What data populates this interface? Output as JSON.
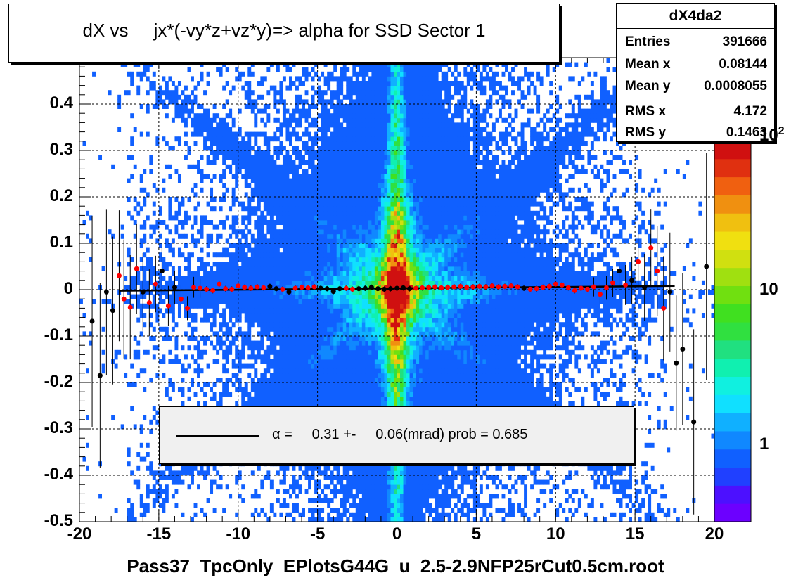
{
  "title": "dX vs     jx*(-vy*z+vz*y)=> alpha for SSD Sector 1",
  "stats": {
    "name": "dX4da2",
    "rows": [
      {
        "label": "Entries",
        "value": "391666"
      },
      {
        "label": "Mean x",
        "value": "0.08144"
      },
      {
        "label": "Mean y",
        "value": "0.0008055"
      },
      {
        "label": "RMS x",
        "value": "4.172"
      },
      {
        "label": "RMS y",
        "value": "0.1463"
      }
    ]
  },
  "fit": {
    "text": "α =     0.31 +-     0.06(mrad) prob = 0.685"
  },
  "xlabel": "Pass37_TpcOnly_EPlotsG44G_u_2.5-2.9NFP25rCut0.5cm.root",
  "colors": {
    "red_points": "#ff0000",
    "black_points": "#000000",
    "fit_line": "#000000",
    "palette": [
      "#6c00ff",
      "#4c10ff",
      "#2040ff",
      "#1060ff",
      "#1088ff",
      "#10b0ff",
      "#10e0ff",
      "#10f0e0",
      "#10f0b0",
      "#20e080",
      "#30e040",
      "#40e020",
      "#70e010",
      "#a0e010",
      "#d0e010",
      "#f0e010",
      "#f0c010",
      "#f09010",
      "#f06010",
      "#e03010",
      "#d01010"
    ]
  },
  "chart_data": {
    "type": "heatmap",
    "title": "dX vs     jx*(-vy*z+vz*y)=> alpha for SSD Sector 1",
    "xlabel": "Pass37_TpcOnly_EPlotsG44G_u_2.5-2.9NFP25rCut0.5cm.root",
    "ylabel": "",
    "xlim": [
      -20,
      20
    ],
    "ylim": [
      -0.5,
      0.5
    ],
    "x_ticks": [
      "-20",
      "-15",
      "-10",
      "-5",
      "0",
      "5",
      "10",
      "15",
      "20"
    ],
    "y_ticks": [
      "-0.5",
      "-0.4",
      "-0.3",
      "-0.2",
      "-0.1",
      "0",
      "0.1",
      "0.2",
      "0.3",
      "0.4"
    ],
    "z_scale": "log",
    "z_ticks": [
      "1",
      "10",
      "10^2"
    ],
    "grid": true,
    "fit": {
      "alpha_mrad": 0.31,
      "error_mrad": 0.06,
      "prob": 0.685
    },
    "profile_points": {
      "x": [
        -19.2,
        -18.7,
        -18.3,
        -17.9,
        -17.5,
        -17.2,
        -16.8,
        -16.4,
        -16.0,
        -15.6,
        -15.2,
        -14.8,
        -14.4,
        -14.0,
        -13.6,
        -13.2,
        -12.8,
        -12.4,
        -12.0,
        -11.6,
        -11.2,
        -10.8,
        -10.4,
        -10.0,
        -9.6,
        -9.2,
        -8.8,
        -8.4,
        -8.0,
        -7.6,
        -7.2,
        -6.8,
        -6.4,
        -6.0,
        -5.6,
        -5.2,
        -4.8,
        -4.4,
        -4.0,
        -3.6,
        -3.2,
        -2.8,
        -2.4,
        -2.0,
        -1.6,
        -1.2,
        -0.8,
        -0.4,
        0.0,
        0.4,
        0.8,
        1.2,
        1.6,
        2.0,
        2.4,
        2.8,
        3.2,
        3.6,
        4.0,
        4.4,
        4.8,
        5.2,
        5.6,
        6.0,
        6.4,
        6.8,
        7.2,
        7.6,
        8.0,
        8.4,
        8.8,
        9.2,
        9.6,
        10.0,
        10.4,
        10.8,
        11.2,
        11.6,
        12.0,
        12.4,
        12.8,
        13.2,
        13.6,
        14.0,
        14.4,
        14.8,
        15.2,
        15.6,
        16.0,
        16.4,
        16.8,
        17.2,
        17.6,
        18.0,
        18.7,
        19.5
      ],
      "y": [
        -0.068,
        -0.185,
        -0.005,
        -0.045,
        0.03,
        -0.02,
        -0.038,
        0.045,
        -0.005,
        -0.028,
        0.012,
        0.04,
        -0.035,
        0.005,
        -0.02,
        -0.04,
        0.005,
        0.003,
        0.001,
        -0.002,
        0.012,
        0.002,
        0.001,
        0.008,
        0.005,
        0.003,
        0.006,
        0.004,
        0.007,
        0.002,
        0.001,
        -0.005,
        0.003,
        0.005,
        0.004,
        0.006,
        0.003,
        0.002,
        -0.004,
        0.002,
        0.003,
        0.001,
        0.002,
        0.003,
        0.005,
        0.002,
        0.001,
        0.002,
        0.003,
        0.004,
        0.002,
        0.003,
        0.004,
        0.005,
        0.006,
        0.004,
        0.005,
        0.006,
        0.007,
        0.005,
        0.006,
        0.007,
        0.006,
        0.008,
        0.006,
        0.007,
        0.008,
        0.006,
        0.003,
        0.001,
        0.002,
        0.005,
        0.007,
        0.012,
        0.01,
        0.004,
        -0.002,
        0.003,
        0.001,
        0.006,
        -0.01,
        0.004,
        0.015,
        0.04,
        0.01,
        0.02,
        0.06,
        0.005,
        0.09,
        0.04,
        -0.04,
        -0.005,
        -0.158,
        -0.128,
        -0.285,
        0.05
      ],
      "colors": [
        "black",
        "black",
        "black",
        "black",
        "red",
        "red",
        "red",
        "red",
        "black",
        "red",
        "red",
        "black",
        "red",
        "black",
        "red",
        "red",
        "red",
        "red",
        "red",
        "red",
        "red",
        "red",
        "red",
        "red",
        "red",
        "red",
        "red",
        "red",
        "black",
        "black",
        "red",
        "black",
        "red",
        "red",
        "red",
        "red",
        "black",
        "black",
        "black",
        "black",
        "red",
        "red",
        "black",
        "black",
        "black",
        "black",
        "black",
        "black",
        "black",
        "black",
        "black",
        "red",
        "red",
        "red",
        "red",
        "red",
        "red",
        "red",
        "red",
        "red",
        "red",
        "red",
        "red",
        "red",
        "red",
        "red",
        "red",
        "red",
        "black",
        "red",
        "red",
        "red",
        "red",
        "red",
        "red",
        "red",
        "red",
        "red",
        "red",
        "red",
        "red",
        "red",
        "red",
        "black",
        "red",
        "black",
        "red",
        "black",
        "red",
        "red",
        "red",
        "black",
        "black",
        "black",
        "black",
        "black"
      ]
    }
  }
}
